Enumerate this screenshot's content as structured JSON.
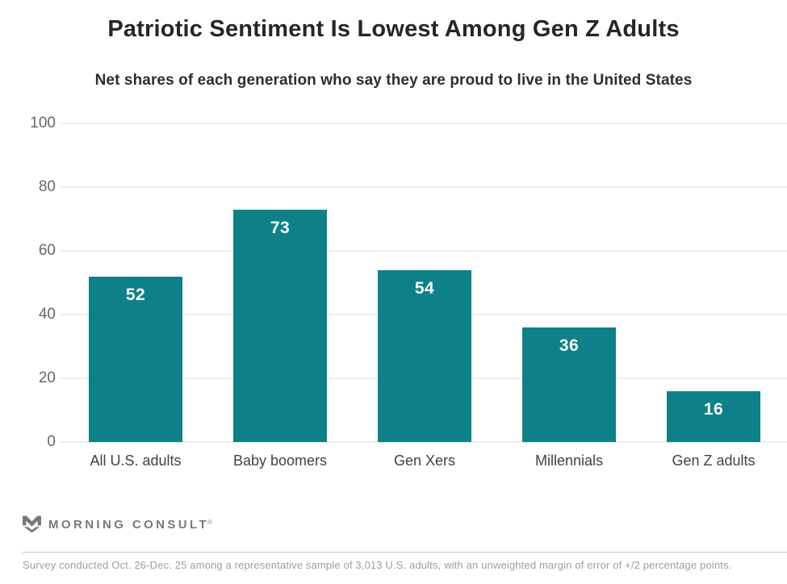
{
  "header": {
    "title": "Patriotic Sentiment Is Lowest Among Gen Z Adults",
    "subtitle": "Net shares of each generation who say they are proud to live in the United States"
  },
  "chart_data": {
    "type": "bar",
    "categories": [
      "All U.S. adults",
      "Baby boomers",
      "Gen Xers",
      "Millennials",
      "Gen Z adults"
    ],
    "values": [
      52,
      73,
      54,
      36,
      16
    ],
    "title": "Patriotic Sentiment Is Lowest Among Gen Z Adults",
    "subtitle": "Net shares of each generation who say they are proud to live in the United States",
    "xlabel": "",
    "ylabel": "",
    "ylim": [
      0,
      100
    ],
    "yticks": [
      0,
      20,
      40,
      60,
      80,
      100
    ],
    "grid": true,
    "legend": false,
    "bar_color": "#0e8188",
    "value_label_color": "#ffffff",
    "value_labels_inside_bars": true
  },
  "footer": {
    "logo_text": "MORNING CONSULT",
    "logo_mark_icon": "morning-consult-m-chevron",
    "trademark": "®",
    "note": "Survey conducted Oct. 26-Dec. 25 among a representative sample of 3,013 U.S. adults, with an unweighted margin of error of +/2 percentage points."
  },
  "colors": {
    "bar": "#0e8188",
    "gridline": "#ededed",
    "title_text": "#262626",
    "axis_tick_text": "#64676b",
    "category_text": "#3e4246",
    "footer_logo": "#76797c",
    "footer_note": "#98a0a9",
    "background": "#ffffff"
  }
}
